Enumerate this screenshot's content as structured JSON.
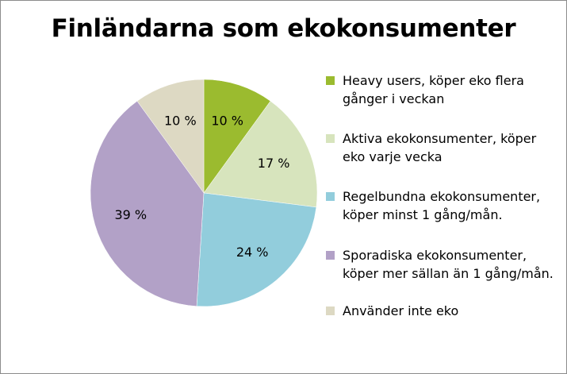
{
  "chart_data": {
    "type": "pie",
    "title": "Finländarna som ekokonsumenter",
    "slices": [
      {
        "label": "Heavy users, köper eko flera gånger i veckan",
        "value": 10,
        "value_label": "10 %",
        "color": "#9bbb2f"
      },
      {
        "label": "Aktiva ekokonsumenter, köper eko varje vecka",
        "value": 17,
        "value_label": "17 %",
        "color": "#d7e4bd"
      },
      {
        "label": "Regelbundna ekokonsumenter, köper minst 1 gång/mån.",
        "value": 24,
        "value_label": "24 %",
        "color": "#92cddc"
      },
      {
        "label": "Sporadiska ekokonsumenter, köper mer sällan än 1 gång/mån.",
        "value": 39,
        "value_label": "39 %",
        "color": "#b2a1c7"
      },
      {
        "label": "Använder inte eko",
        "value": 10,
        "value_label": "10 %",
        "color": "#ddd9c3"
      }
    ],
    "legend_position": "right"
  }
}
